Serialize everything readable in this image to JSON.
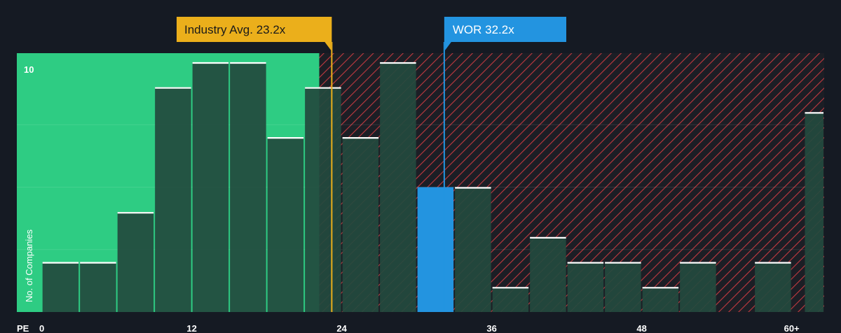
{
  "chart_data": {
    "type": "bar",
    "ylabel": "No. of Companies",
    "xlabel": "PE",
    "x_tick_labels": [
      "0",
      "12",
      "24",
      "36",
      "48",
      "60+"
    ],
    "x_ticks": [
      0,
      12,
      24,
      36,
      48,
      60
    ],
    "y_tick_labels": [
      "10"
    ],
    "y_ticks": [
      10
    ],
    "xlim": [
      -2,
      62.6
    ],
    "ylim": [
      0,
      10
    ],
    "bin_width": 3,
    "bins": [
      {
        "x0": 0,
        "value": 2
      },
      {
        "x0": 3,
        "value": 2
      },
      {
        "x0": 6,
        "value": 4
      },
      {
        "x0": 9,
        "value": 9
      },
      {
        "x0": 12,
        "value": 10
      },
      {
        "x0": 15,
        "value": 10
      },
      {
        "x0": 18,
        "value": 7
      },
      {
        "x0": 21,
        "value": 9
      },
      {
        "x0": 24,
        "value": 7
      },
      {
        "x0": 27,
        "value": 10
      },
      {
        "x0": 30,
        "value": 5,
        "highlight": true
      },
      {
        "x0": 33,
        "value": 5
      },
      {
        "x0": 36,
        "value": 1
      },
      {
        "x0": 39,
        "value": 3
      },
      {
        "x0": 42,
        "value": 2
      },
      {
        "x0": 45,
        "value": 2
      },
      {
        "x0": 48,
        "value": 1
      },
      {
        "x0": 51,
        "value": 2
      },
      {
        "x0": 54,
        "value": 0
      },
      {
        "x0": 57,
        "value": 2
      },
      {
        "x0": 61,
        "value": 8,
        "width": 1.6
      }
    ],
    "fair_zone_end": 22.2,
    "industry_avg": {
      "label": "Industry Avg. 23.2x",
      "value": 23.2
    },
    "company": {
      "label": "WOR 32.2x",
      "value": 32.2
    },
    "colors": {
      "background": "#151a23",
      "fair_zone": "#2ecc83",
      "bar_fill": "#234a3e",
      "bar_top": "#ffffff",
      "overvalued_hatch": "#c0393f",
      "company": "#2394e0",
      "industry": "#ebaf1b"
    },
    "grid": true
  }
}
